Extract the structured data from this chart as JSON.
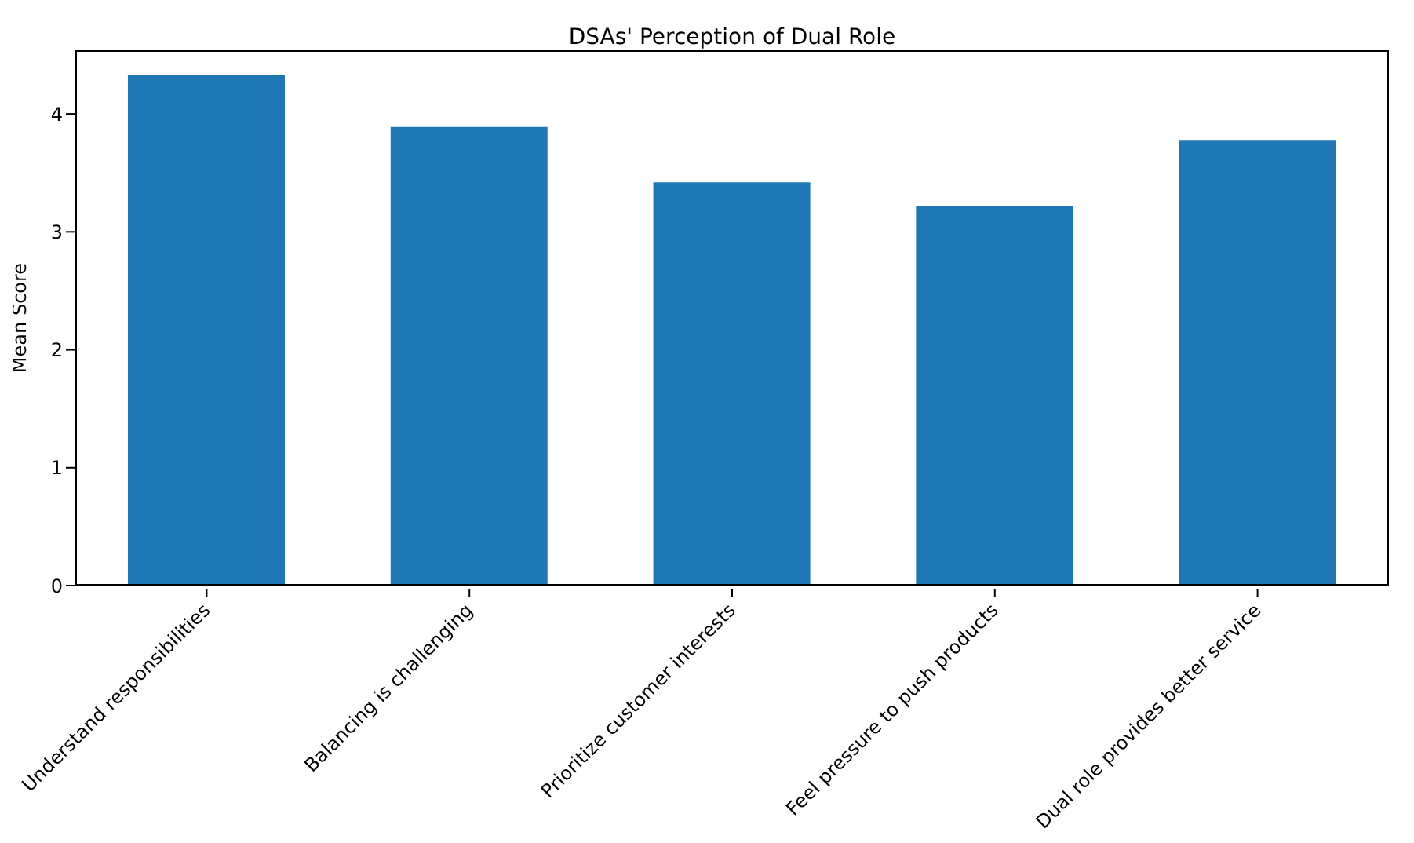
{
  "chart_data": {
    "type": "bar",
    "title": "DSAs' Perception of Dual Role",
    "ylabel": "Mean Score",
    "categories": [
      "Understand responsibilities",
      "Balancing is challenging",
      "Prioritize customer interests",
      "Feel pressure to push products",
      "Dual role provides better service"
    ],
    "values": [
      4.33,
      3.89,
      3.42,
      3.22,
      3.78
    ],
    "color": "#1f77b4",
    "ylim": [
      0,
      4.54
    ],
    "yticks": [
      0,
      1,
      2,
      3,
      4
    ],
    "grid": false
  }
}
